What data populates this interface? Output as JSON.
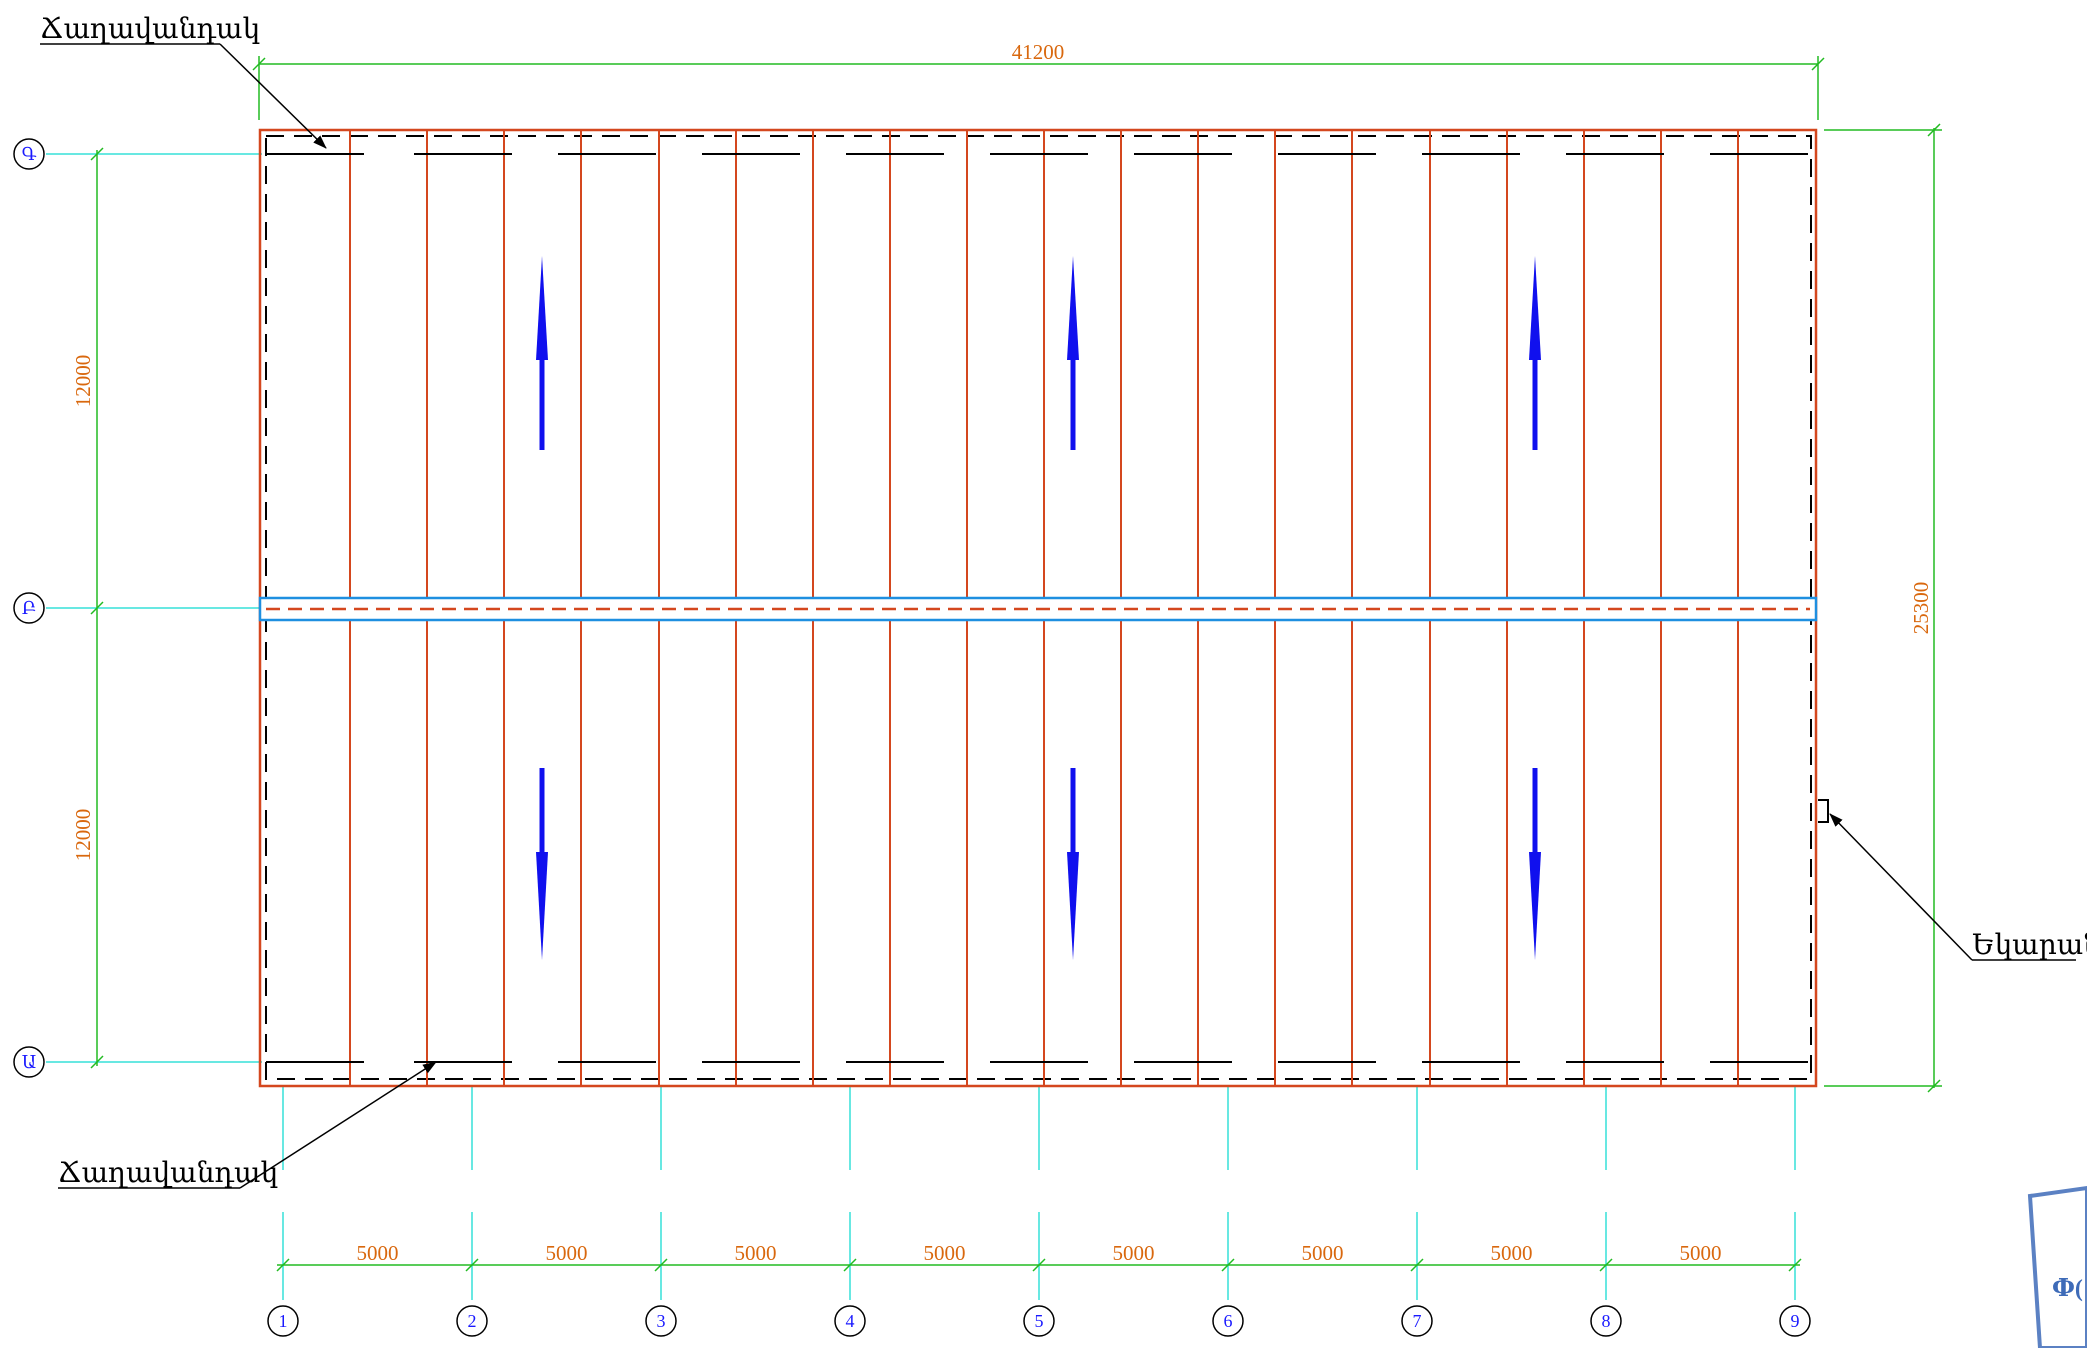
{
  "callouts": {
    "top_left_label": "Ճաղավանդակ",
    "bottom_left_label": "Ճաղավանդակ",
    "right_label": "Եկարան"
  },
  "dimensions": {
    "overall_width": "41200",
    "overall_height": "25300",
    "bay_upper": "12000",
    "bay_lower": "12000",
    "spans": [
      "5000",
      "5000",
      "5000",
      "5000",
      "5000",
      "5000",
      "5000",
      "5000"
    ]
  },
  "grid_axes": {
    "columns": [
      "1",
      "2",
      "3",
      "4",
      "5",
      "6",
      "7",
      "8",
      "9"
    ],
    "rows": [
      "Գ",
      "Բ",
      "Ա"
    ]
  },
  "stamp": {
    "text": "Փ("
  },
  "colors": {
    "outline": "#d4471e",
    "dimension": "#22bb22",
    "dimension_text": "#d9680e",
    "grid_line": "#36e0d8",
    "grid_label": "#1a1aff",
    "ridge_frame": "#1e8fe0",
    "slope_arrow": "#1010ee",
    "parapet": "#000000",
    "stamp": "#3e6bb8"
  }
}
